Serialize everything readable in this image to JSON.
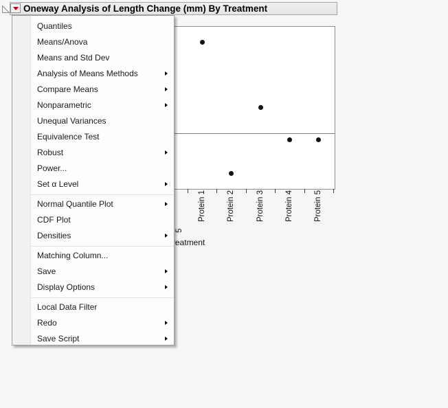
{
  "window": {
    "background": "#f6f6f6"
  },
  "report_header": {
    "title": "Oneway Analysis of Length Change (mm) By Treatment",
    "disclosure_icon": "open-outline-triangle",
    "menu_button_icon": "red-triangle",
    "colors": {
      "accent_red": "#c00000",
      "strip_bg": "#e9e9e9",
      "strip_border": "#a3a3a3"
    }
  },
  "menu": {
    "items": [
      {
        "label": "Quantiles",
        "has_submenu": false
      },
      {
        "label": "Means/Anova",
        "has_submenu": false
      },
      {
        "label": "Means and Std Dev",
        "has_submenu": false
      },
      {
        "label": "Analysis of Means Methods",
        "has_submenu": true
      },
      {
        "label": "Compare Means",
        "has_submenu": true
      },
      {
        "label": "Nonparametric",
        "has_submenu": true
      },
      {
        "label": "Unequal Variances",
        "has_submenu": false
      },
      {
        "label": "Equivalence Test",
        "has_submenu": false
      },
      {
        "label": "Robust",
        "has_submenu": true
      },
      {
        "label": "Power...",
        "has_submenu": false
      },
      {
        "label": "Set α Level",
        "has_submenu": true
      },
      {
        "separator": true
      },
      {
        "label": "Normal Quantile Plot",
        "has_submenu": true
      },
      {
        "label": "CDF Plot",
        "has_submenu": false
      },
      {
        "label": "Densities",
        "has_submenu": true
      },
      {
        "separator": true
      },
      {
        "label": "Matching Column...",
        "has_submenu": false
      },
      {
        "label": "Save",
        "has_submenu": true
      },
      {
        "label": "Display Options",
        "has_submenu": true
      },
      {
        "separator": true
      },
      {
        "label": "Local Data Filter",
        "has_submenu": false
      },
      {
        "label": "Redo",
        "has_submenu": true
      },
      {
        "label": "Save Script",
        "has_submenu": true
      }
    ]
  },
  "chart_data": {
    "type": "scatter",
    "title": "Oneway Analysis of Length Change (mm) By Treatment",
    "xlabel": "Treatment",
    "categories": [
      "Protein 1",
      "Protein 2",
      "Protein 3",
      "Protein 4",
      "Protein 5"
    ],
    "points_relative_y": [
      0.9,
      0.09,
      0.5,
      0.3,
      0.3
    ],
    "grand_mean_line_relative_y": 0.34,
    "legend": "none",
    "grid": false,
    "note": "Y axis and left part of plot hidden behind the open red-triangle menu; point heights estimated as fraction of visible plot height from bottom axis",
    "clipped_fragments": {
      "rotated_digit": "5",
      "axis_title_visible_part": "eatment"
    }
  }
}
